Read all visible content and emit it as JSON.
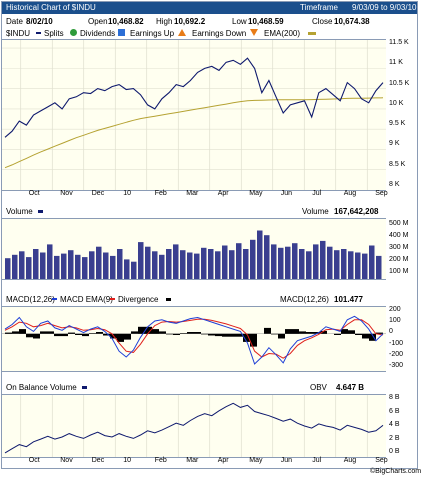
{
  "header": {
    "title": "Historical Chart of $INDU",
    "timeframe_label": "Timeframe",
    "timeframe_value": "9/03/09 to 9/03/10"
  },
  "quote": {
    "date_label": "Date",
    "date": "8/02/10",
    "open_label": "Open",
    "open": "10,468.82",
    "high_label": "High",
    "high": "10,692.2",
    "low_label": "Low",
    "low": "10,468.59",
    "close_label": "Close",
    "close": "10,674.38"
  },
  "legend": {
    "symbol": "$INDU",
    "splits": "Splits",
    "dividends": "Dividends",
    "earnings_up": "Earnings Up",
    "earnings_down": "Earnings Down",
    "ema": "EMA(200)"
  },
  "volume_panel": {
    "label": "Volume",
    "readout_label": "Volume",
    "readout": "167,642,208"
  },
  "macd_panel": {
    "macd_label": "MACD(12,26)",
    "ema_label": "MACD EMA(9)",
    "div_label": "Divergence",
    "readout_label": "MACD(12,26)",
    "readout": "101.477"
  },
  "obv_panel": {
    "label": "On Balance Volume",
    "readout_label": "OBV",
    "readout": "4.647 B"
  },
  "footer": {
    "copyright": "©BigCharts.com"
  },
  "colors": {
    "price": "#0f1a6e",
    "ema": "#b5a232",
    "volume": "#3a3f8f",
    "macd": "#1f3fd6",
    "signal": "#e0201b",
    "divergence": "#000000",
    "panel_bg": "#fffff0",
    "header_bg": "#1b4f8c"
  },
  "chart_data": [
    {
      "type": "line",
      "title": "Historical Chart of $INDU",
      "months": [
        "Oct",
        "Nov",
        "Dec",
        "10",
        "Feb",
        "Mar",
        "Apr",
        "May",
        "Jun",
        "Jul",
        "Aug",
        "Sep"
      ],
      "yticks": [
        "11.5 K",
        "11 K",
        "10.5 K",
        "10 K",
        "9.5 K",
        "9 K",
        "8.5 K",
        "8 K"
      ],
      "ylim": [
        8000,
        11700
      ],
      "series": [
        {
          "name": "$INDU",
          "values": [
            9300,
            9450,
            9700,
            9600,
            9850,
            9950,
            10050,
            10150,
            10000,
            10250,
            10300,
            10400,
            10380,
            10500,
            10450,
            10550,
            10600,
            10480,
            10500,
            10350,
            10100,
            10000,
            10250,
            10400,
            10600,
            10550,
            10700,
            10900,
            11000,
            11050,
            10950,
            11150,
            11200,
            11100,
            11250,
            11000,
            10400,
            10700,
            10300,
            9900,
            10100,
            10150,
            10200,
            9800,
            10400,
            10500,
            10350,
            10200,
            10650,
            10500,
            10250,
            10150,
            10450,
            10650
          ]
        },
        {
          "name": "EMA(200)",
          "values": [
            8550,
            8620,
            8700,
            8780,
            8860,
            8940,
            9010,
            9080,
            9150,
            9220,
            9290,
            9350,
            9410,
            9470,
            9520,
            9570,
            9620,
            9670,
            9720,
            9760,
            9790,
            9820,
            9850,
            9880,
            9910,
            9940,
            9970,
            10000,
            10030,
            10060,
            10090,
            10120,
            10150,
            10180,
            10200,
            10210,
            10215,
            10220,
            10225,
            10225,
            10225,
            10225,
            10228,
            10230,
            10235,
            10240,
            10245,
            10250,
            10260,
            10265,
            10265,
            10268,
            10272,
            10275
          ]
        }
      ]
    },
    {
      "type": "bar",
      "title": "Volume",
      "yticks": [
        "500 M",
        "400 M",
        "300 M",
        "200 M",
        "100 M"
      ],
      "ylim": [
        0,
        520
      ],
      "values": [
        180,
        210,
        240,
        190,
        260,
        230,
        300,
        200,
        220,
        250,
        210,
        190,
        240,
        280,
        230,
        200,
        260,
        170,
        150,
        320,
        280,
        240,
        210,
        260,
        300,
        250,
        230,
        220,
        270,
        260,
        240,
        290,
        250,
        310,
        260,
        340,
        420,
        380,
        300,
        270,
        280,
        310,
        260,
        240,
        300,
        330,
        280,
        250,
        260,
        240,
        230,
        220,
        290,
        200
      ]
    },
    {
      "type": "line",
      "title": "MACD(12,26)",
      "yticks": [
        "200",
        "100",
        "0",
        "-100",
        "-200",
        "-300"
      ],
      "ylim": [
        -320,
        230
      ],
      "series": [
        {
          "name": "MACD(12,26)",
          "values": [
            40,
            80,
            140,
            60,
            20,
            90,
            110,
            50,
            30,
            70,
            40,
            10,
            40,
            60,
            20,
            -40,
            -150,
            -200,
            -140,
            -30,
            60,
            110,
            120,
            100,
            90,
            110,
            130,
            140,
            120,
            100,
            80,
            60,
            40,
            20,
            -80,
            -260,
            -200,
            -120,
            -180,
            -250,
            -130,
            -60,
            -40,
            -20,
            10,
            60,
            40,
            20,
            120,
            150,
            110,
            40,
            -60,
            0
          ]
        },
        {
          "name": "MACD EMA(9)",
          "values": [
            30,
            60,
            100,
            90,
            60,
            70,
            90,
            70,
            50,
            60,
            50,
            30,
            35,
            45,
            35,
            0,
            -80,
            -150,
            -160,
            -90,
            0,
            70,
            100,
            105,
            100,
            105,
            115,
            125,
            125,
            115,
            100,
            85,
            65,
            45,
            -10,
            -150,
            -200,
            -170,
            -175,
            -210,
            -170,
            -100,
            -60,
            -35,
            -5,
            35,
            40,
            30,
            80,
            120,
            120,
            80,
            0,
            -10
          ]
        }
      ],
      "divergence": [
        10,
        20,
        40,
        -30,
        -40,
        20,
        20,
        -20,
        -20,
        10,
        -10,
        -20,
        5,
        15,
        -15,
        -40,
        -70,
        -50,
        20,
        60,
        60,
        40,
        20,
        -5,
        -10,
        5,
        15,
        15,
        -5,
        -15,
        -20,
        -25,
        -25,
        -25,
        -70,
        -110,
        0,
        50,
        -5,
        -40,
        40,
        40,
        20,
        15,
        15,
        25,
        0,
        -10,
        40,
        30,
        -10,
        -40,
        -60,
        10
      ],
      "readout": 101.477
    },
    {
      "type": "line",
      "title": "On Balance Volume",
      "yticks": [
        "8 B",
        "6 B",
        "4 B",
        "2 B",
        "0 B"
      ],
      "ylim": [
        0,
        9
      ],
      "values": [
        0.6,
        1.2,
        1.8,
        1.5,
        2.2,
        2.6,
        3.0,
        2.6,
        2.9,
        3.4,
        3.0,
        2.7,
        3.2,
        3.6,
        3.1,
        2.9,
        3.4,
        3.0,
        2.7,
        3.2,
        3.8,
        3.5,
        3.9,
        4.4,
        4.9,
        4.6,
        5.3,
        5.9,
        6.3,
        6.0,
        6.7,
        7.3,
        7.8,
        7.2,
        7.5,
        6.6,
        6.3,
        6.0,
        5.6,
        5.2,
        5.5,
        4.9,
        4.5,
        4.2,
        4.8,
        4.5,
        4.3,
        3.9,
        4.6,
        4.3,
        4.0,
        3.6,
        3.8,
        4.6
      ]
    }
  ]
}
